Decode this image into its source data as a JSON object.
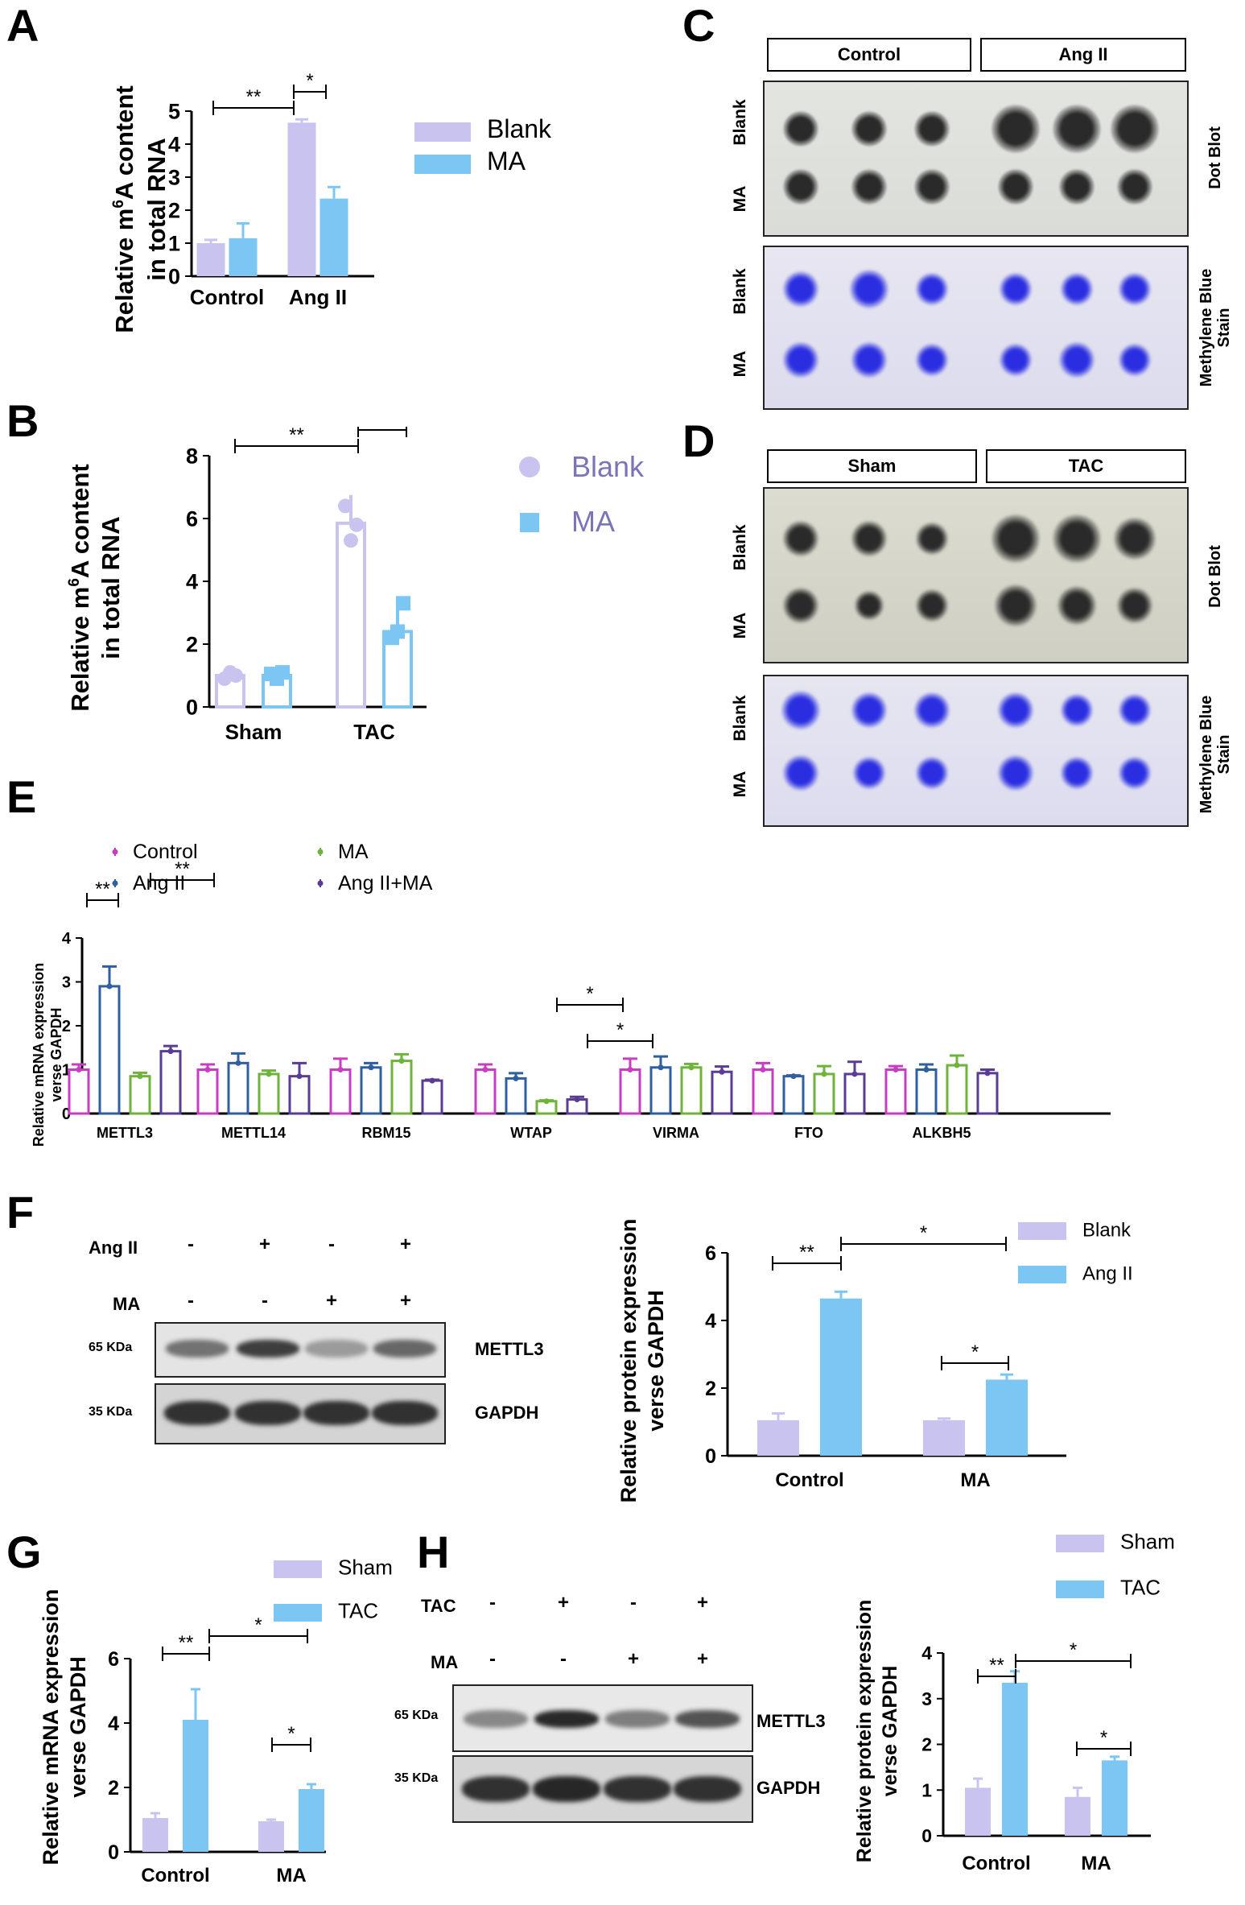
{
  "panels": {
    "A": "A",
    "B": "B",
    "C": "C",
    "D": "D",
    "E": "E",
    "F": "F",
    "G": "G",
    "H": "H"
  },
  "colors": {
    "blank_bar": "#c9c3f0",
    "ma_bar": "#7cc6f4",
    "sig": "#000000",
    "control": "#c93dc4",
    "angii": "#2f5f9e",
    "ma": "#6fb33c",
    "angii_ma": "#5a3c95",
    "dot_dark": "#2a2a2a",
    "dot_blue": "#2a2ee0"
  },
  "dot_blot_C": {
    "headers": [
      "Control",
      "Ang II"
    ],
    "row_labels": [
      "Blank",
      "MA"
    ],
    "side_top": "Dot Blot",
    "side_bottom": "Methylene Blue Stain"
  },
  "dot_blot_D": {
    "headers": [
      "Sham",
      "TAC"
    ],
    "row_labels": [
      "Blank",
      "MA"
    ],
    "side_top": "Dot Blot",
    "side_bottom": "Methylene Blue Stain"
  },
  "western_F": {
    "row1_label": "Ang II",
    "row1_signs": [
      "-",
      "+",
      "-",
      "+"
    ],
    "row2_label": "MA",
    "row2_signs": [
      "-",
      "-",
      "+",
      "+"
    ],
    "band1_kda": "65 KDa",
    "band1_name": "METTL3",
    "band2_kda": "35 KDa",
    "band2_name": "GAPDH"
  },
  "western_H": {
    "row1_label": "TAC",
    "row1_signs": [
      "-",
      "+",
      "-",
      "+"
    ],
    "row2_label": "MA",
    "row2_signs": [
      "-",
      "-",
      "+",
      "+"
    ],
    "band1_kda": "65 KDa",
    "band1_name": "METTL3",
    "band2_kda": "35 KDa",
    "band2_name": "GAPDH"
  },
  "chart_data": [
    {
      "panel": "A",
      "type": "bar",
      "categories": [
        "Control",
        "Ang II"
      ],
      "series": [
        {
          "name": "Blank",
          "values": [
            1.0,
            4.65
          ],
          "errors": [
            0.1,
            0.1
          ]
        },
        {
          "name": "MA",
          "values": [
            1.15,
            2.35
          ],
          "errors": [
            0.45,
            0.35
          ]
        }
      ],
      "ylabel": "Relative m6A content in total RNA",
      "ylabel_line1_pre": "Relative m",
      "ylabel_sup": "6",
      "ylabel_line1_post": "A content",
      "ylabel_line2": "in total RNA",
      "ylim": [
        0,
        5
      ],
      "yticks": [
        "0",
        "1",
        "2",
        "3",
        "4",
        "5"
      ],
      "significance": [
        "**",
        "*"
      ],
      "legend": [
        "Blank",
        "MA"
      ],
      "legend_placement": "right"
    },
    {
      "panel": "B",
      "type": "bar",
      "categories": [
        "Sham",
        "TAC"
      ],
      "series": [
        {
          "name": "Blank",
          "values": [
            1.0,
            5.85
          ],
          "errors": [
            0.15,
            0.9
          ]
        },
        {
          "name": "MA",
          "values": [
            1.0,
            2.4
          ],
          "errors": [
            0.25,
            0.9
          ]
        }
      ],
      "points": [
        [
          0.9,
          1.1,
          1.0
        ],
        [
          1.05,
          0.9,
          1.1
        ],
        [
          6.4,
          5.3,
          5.8
        ],
        [
          2.2,
          2.4,
          3.3
        ]
      ],
      "ylabel_line1_pre": "Relative m",
      "ylabel_sup": "6",
      "ylabel_line1_post": "A content",
      "ylabel_line2": "in total RNA",
      "ylim": [
        0,
        8
      ],
      "yticks": [
        "0",
        "2",
        "4",
        "6",
        "8"
      ],
      "significance": [
        "**",
        "*"
      ],
      "legend": [
        "Blank",
        "MA"
      ],
      "legend_placement": "right"
    },
    {
      "panel": "E",
      "type": "bar",
      "categories": [
        "METTL3",
        "METTL14",
        "RBM15",
        "WTAP",
        "VIRMA",
        "FTO",
        "ALKBH5"
      ],
      "series": [
        {
          "name": "Control",
          "values": [
            1.0,
            1.0,
            1.0,
            1.0,
            1.0,
            1.0,
            1.0
          ],
          "errors": [
            0.12,
            0.12,
            0.25,
            0.12,
            0.25,
            0.15,
            0.08
          ]
        },
        {
          "name": "Ang II",
          "values": [
            2.9,
            1.15,
            1.05,
            0.8,
            1.05,
            0.85,
            1.0
          ],
          "errors": [
            0.45,
            0.22,
            0.1,
            0.12,
            0.25,
            0.02,
            0.12
          ]
        },
        {
          "name": "MA",
          "values": [
            0.85,
            0.9,
            1.2,
            0.28,
            1.05,
            0.9,
            1.1
          ],
          "errors": [
            0.08,
            0.08,
            0.15,
            0.02,
            0.08,
            0.18,
            0.22
          ]
        },
        {
          "name": "Ang II+MA",
          "values": [
            1.42,
            0.85,
            0.75,
            0.32,
            0.95,
            0.9,
            0.92
          ],
          "errors": [
            0.12,
            0.3,
            0.02,
            0.06,
            0.12,
            0.28,
            0.08
          ]
        }
      ],
      "ylabel_line1": "Relative mRNA expression",
      "ylabel_line2": "verse GAPDH",
      "ylim": [
        0,
        4
      ],
      "yticks": [
        "0",
        "1",
        "2",
        "3",
        "4"
      ],
      "significance": [
        "**",
        "**",
        "*",
        "*"
      ],
      "legend": [
        "Control",
        "Ang II",
        "MA",
        "Ang II+MA"
      ],
      "legend_placement": "top"
    },
    {
      "panel": "F",
      "type": "bar",
      "categories": [
        "Control",
        "MA"
      ],
      "series": [
        {
          "name": "Blank",
          "values": [
            1.05,
            1.05
          ],
          "errors": [
            0.2,
            0.05
          ]
        },
        {
          "name": "Ang II",
          "values": [
            4.65,
            2.25
          ],
          "errors": [
            0.2,
            0.15
          ]
        }
      ],
      "ylabel_line1": "Relative protein expression",
      "ylabel_line2": "verse GAPDH",
      "ylim": [
        0,
        6
      ],
      "yticks": [
        "0",
        "2",
        "4",
        "6"
      ],
      "significance": [
        "**",
        "*",
        "*"
      ],
      "legend": [
        "Blank",
        "Ang II"
      ],
      "legend_placement": "top-right"
    },
    {
      "panel": "G",
      "type": "bar",
      "categories": [
        "Control",
        "MA"
      ],
      "series": [
        {
          "name": "Sham",
          "values": [
            1.05,
            0.95
          ],
          "errors": [
            0.15,
            0.05
          ]
        },
        {
          "name": "TAC",
          "values": [
            4.1,
            1.95
          ],
          "errors": [
            0.95,
            0.15
          ]
        }
      ],
      "ylabel_line1": "Relative mRNA expression",
      "ylabel_line2": "verse GAPDH",
      "ylim": [
        0,
        6
      ],
      "yticks": [
        "0",
        "2",
        "4",
        "6"
      ],
      "significance": [
        "**",
        "*",
        "*"
      ],
      "legend": [
        "Sham",
        "TAC"
      ],
      "legend_placement": "top-right"
    },
    {
      "panel": "H",
      "type": "bar",
      "categories": [
        "Control",
        "MA"
      ],
      "series": [
        {
          "name": "Sham",
          "values": [
            1.05,
            0.85
          ],
          "errors": [
            0.2,
            0.2
          ]
        },
        {
          "name": "TAC",
          "values": [
            3.35,
            1.65
          ],
          "errors": [
            0.25,
            0.08
          ]
        }
      ],
      "ylabel_line1": "Relative protein expression",
      "ylabel_line2": "verse GAPDH",
      "ylim": [
        0,
        4
      ],
      "yticks": [
        "0",
        "1",
        "2",
        "3",
        "4"
      ],
      "significance": [
        "**",
        "*",
        "*"
      ],
      "legend": [
        "Sham",
        "TAC"
      ],
      "legend_placement": "top-right"
    }
  ]
}
